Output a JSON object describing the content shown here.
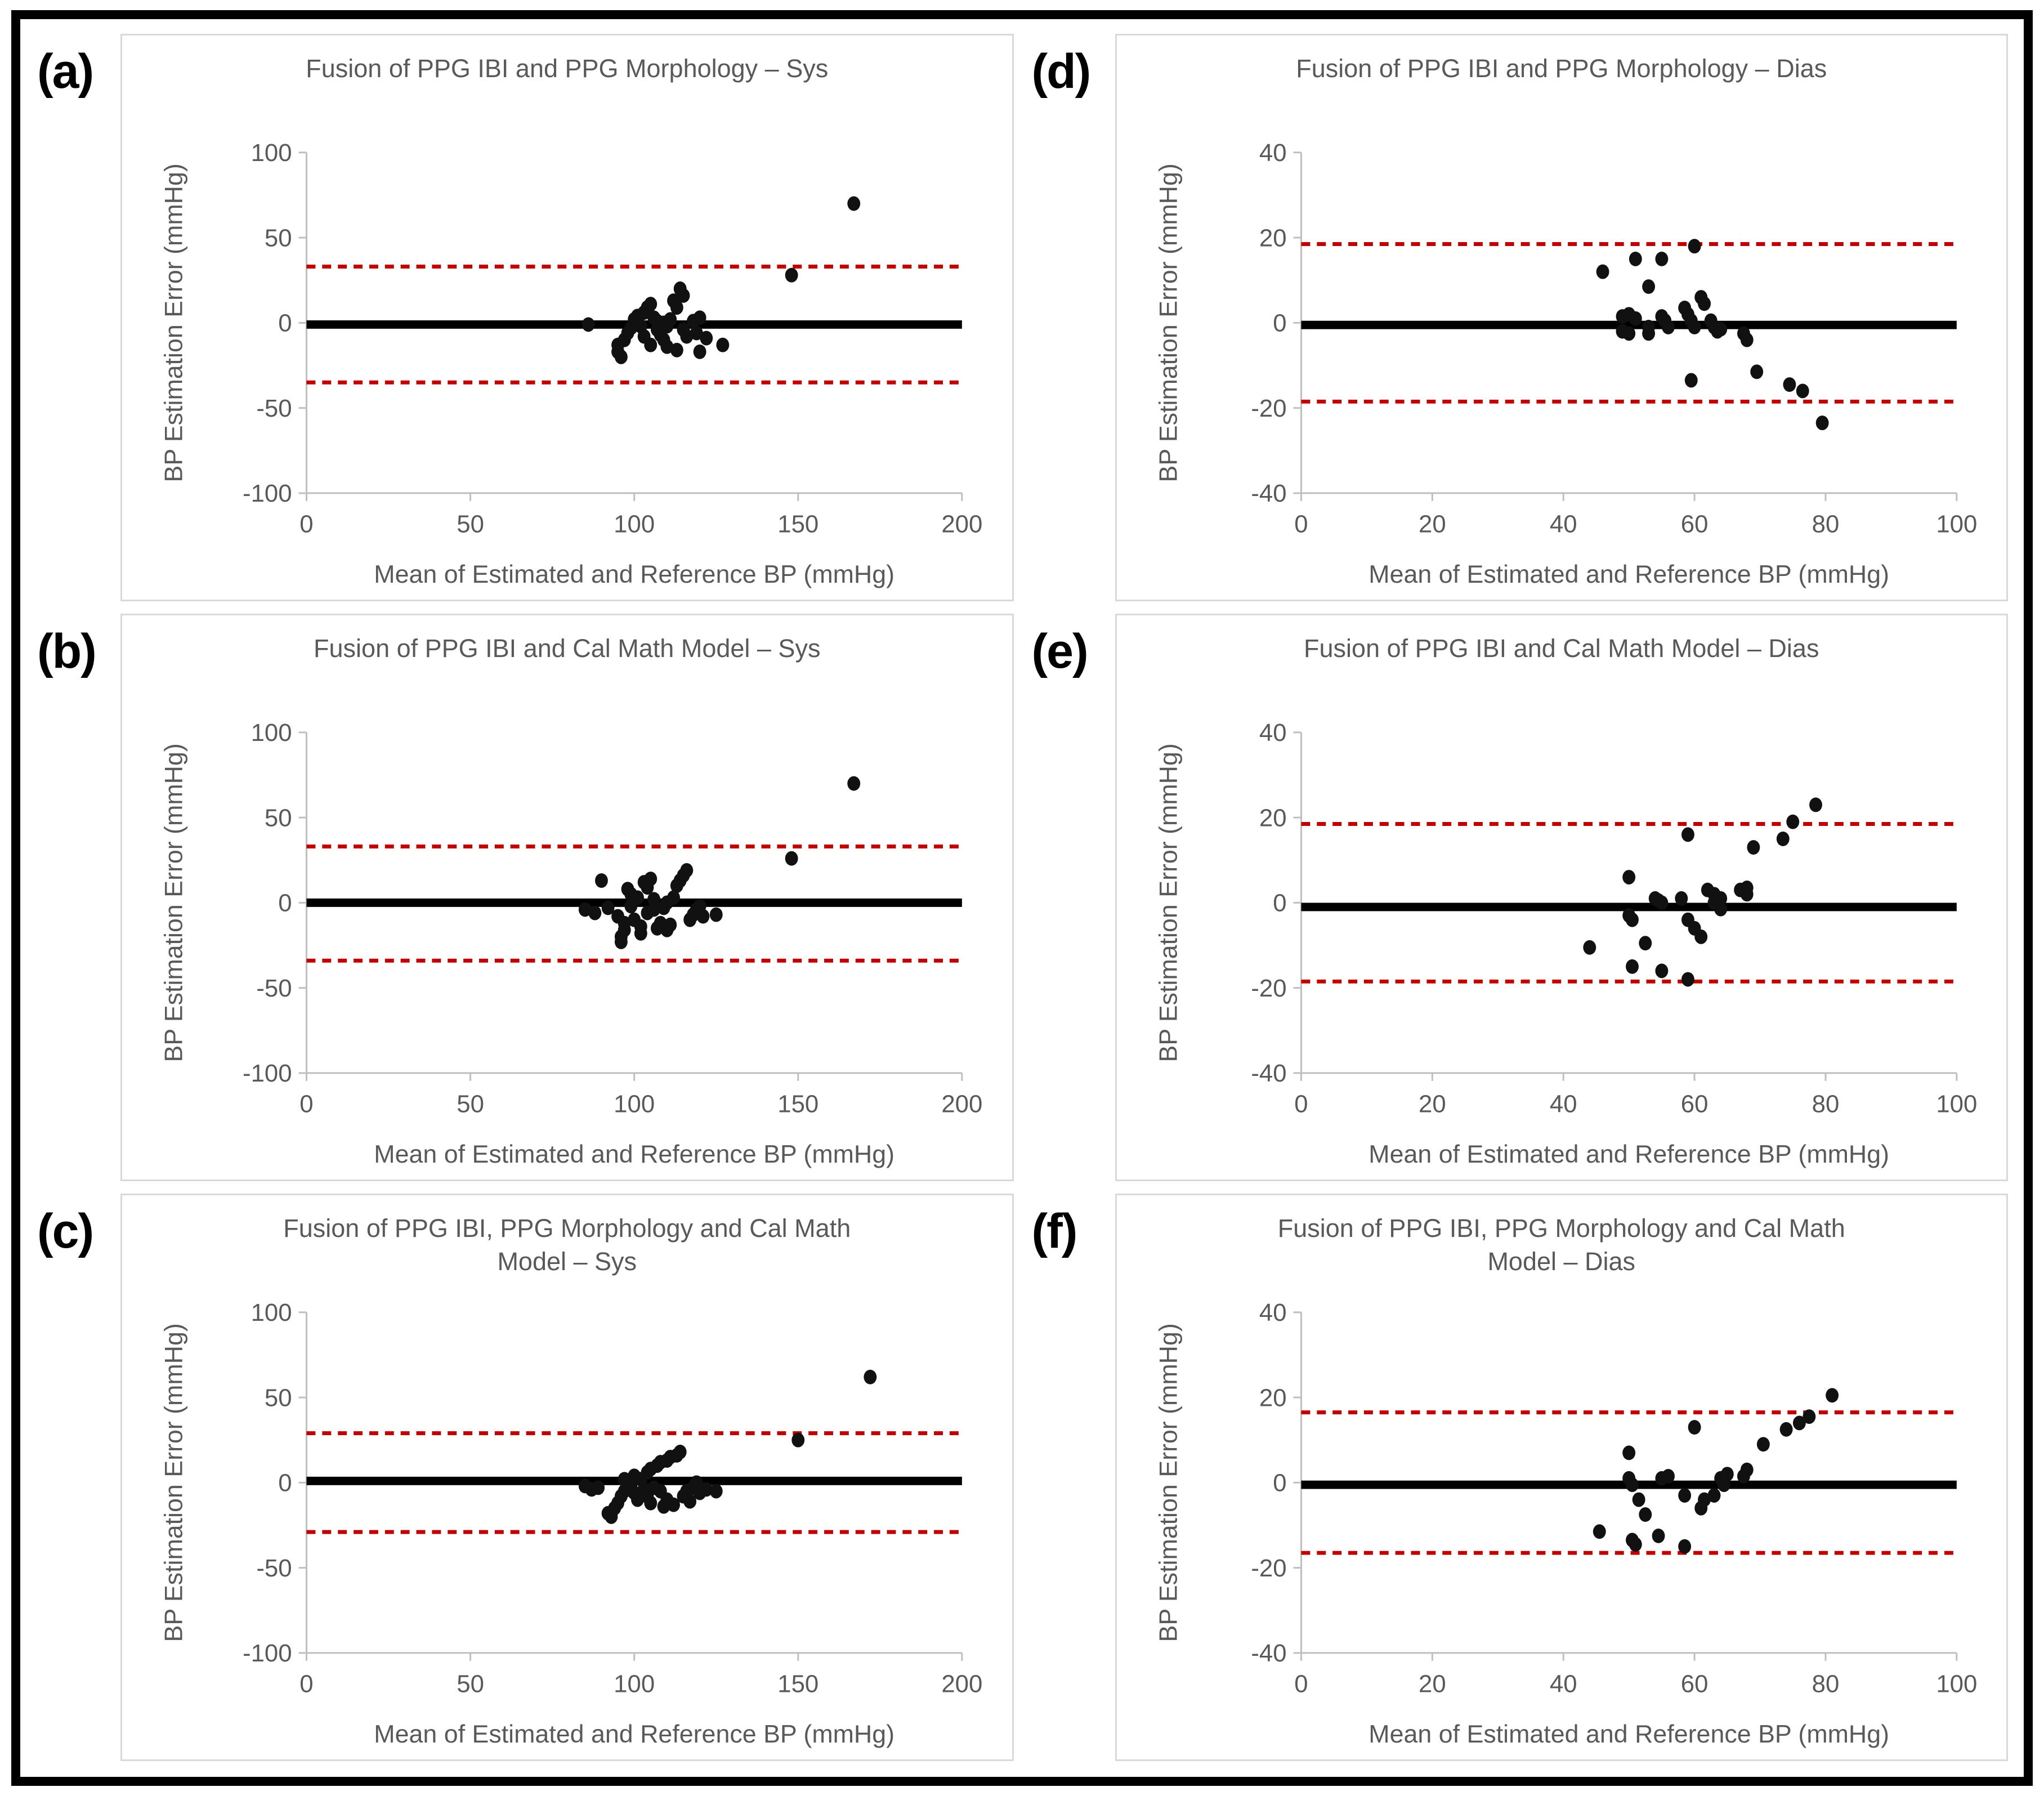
{
  "colors": {
    "point": "#111111",
    "bias_line": "#000000",
    "loa_line": "#c00000",
    "axis_line": "#bfbfbf",
    "tick_text": "#595959",
    "title_text": "#595959",
    "panel_border": "#d9d9d9",
    "outer_frame": "#000000"
  },
  "chart_data": [
    {
      "letter": "(a)",
      "title": "Fusion of PPG IBI and PPG Morphology – Sys",
      "type": "scatter",
      "xlabel": "Mean of Estimated and Reference BP (mmHg)",
      "ylabel": "BP Estimation Error (mmHg)",
      "xlim": [
        0,
        200
      ],
      "xticks": [
        0,
        50,
        100,
        150,
        200
      ],
      "ylim": [
        -100,
        100
      ],
      "yticks": [
        -100,
        -50,
        0,
        50,
        100
      ],
      "bias_line": -1,
      "loa_upper": 33,
      "loa_lower": -35,
      "grid": false,
      "legend": null,
      "points": [
        [
          86,
          -1
        ],
        [
          95,
          -13
        ],
        [
          95,
          -17
        ],
        [
          96,
          -20
        ],
        [
          97,
          -10
        ],
        [
          98,
          -6
        ],
        [
          99,
          -3
        ],
        [
          100,
          -1
        ],
        [
          100,
          2
        ],
        [
          101,
          4
        ],
        [
          102,
          -2
        ],
        [
          103,
          6
        ],
        [
          103,
          -8
        ],
        [
          104,
          9
        ],
        [
          105,
          11
        ],
        [
          105,
          -13
        ],
        [
          106,
          3
        ],
        [
          107,
          1
        ],
        [
          107,
          -4
        ],
        [
          108,
          -7
        ],
        [
          109,
          0
        ],
        [
          109,
          -10
        ],
        [
          110,
          -2
        ],
        [
          110,
          -14
        ],
        [
          111,
          2
        ],
        [
          112,
          13
        ],
        [
          113,
          9
        ],
        [
          113,
          -16
        ],
        [
          114,
          20
        ],
        [
          115,
          16
        ],
        [
          115,
          -4
        ],
        [
          116,
          -8
        ],
        [
          118,
          1
        ],
        [
          119,
          -6
        ],
        [
          120,
          3
        ],
        [
          120,
          -17
        ],
        [
          122,
          -9
        ],
        [
          127,
          -13
        ],
        [
          148,
          28
        ],
        [
          167,
          70
        ]
      ]
    },
    {
      "letter": "(b)",
      "title": "Fusion of PPG IBI and Cal Math Model – Sys",
      "type": "scatter",
      "xlabel": "Mean of Estimated and Reference BP (mmHg)",
      "ylabel": "BP Estimation Error (mmHg)",
      "xlim": [
        0,
        200
      ],
      "xticks": [
        0,
        50,
        100,
        150,
        200
      ],
      "ylim": [
        -100,
        100
      ],
      "yticks": [
        -100,
        -50,
        0,
        50,
        100
      ],
      "bias_line": 0,
      "loa_upper": 33,
      "loa_lower": -34,
      "grid": false,
      "legend": null,
      "points": [
        [
          85,
          -4
        ],
        [
          88,
          -6
        ],
        [
          90,
          13
        ],
        [
          92,
          -3
        ],
        [
          95,
          -8
        ],
        [
          96,
          -20
        ],
        [
          96,
          -23
        ],
        [
          97,
          -16
        ],
        [
          97,
          -12
        ],
        [
          98,
          8
        ],
        [
          99,
          5
        ],
        [
          99,
          -2
        ],
        [
          100,
          -10
        ],
        [
          101,
          3
        ],
        [
          102,
          -18
        ],
        [
          102,
          -14
        ],
        [
          103,
          12
        ],
        [
          104,
          9
        ],
        [
          104,
          -6
        ],
        [
          105,
          14
        ],
        [
          106,
          2
        ],
        [
          106,
          -4
        ],
        [
          107,
          -15
        ],
        [
          108,
          -12
        ],
        [
          109,
          -3
        ],
        [
          110,
          0
        ],
        [
          110,
          -16
        ],
        [
          111,
          -13
        ],
        [
          112,
          3
        ],
        [
          113,
          10
        ],
        [
          114,
          13
        ],
        [
          115,
          16
        ],
        [
          116,
          19
        ],
        [
          117,
          -10
        ],
        [
          118,
          -7
        ],
        [
          119,
          -4
        ],
        [
          120,
          -2
        ],
        [
          121,
          -8
        ],
        [
          125,
          -7
        ],
        [
          148,
          26
        ],
        [
          167,
          70
        ]
      ]
    },
    {
      "letter": "(c)",
      "title": "Fusion of PPG IBI, PPG Morphology and Cal Math Model – Sys",
      "type": "scatter",
      "xlabel": "Mean of Estimated and Reference BP (mmHg)",
      "ylabel": "BP Estimation Error (mmHg)",
      "xlim": [
        0,
        200
      ],
      "xticks": [
        0,
        50,
        100,
        150,
        200
      ],
      "ylim": [
        -100,
        100
      ],
      "yticks": [
        -100,
        -50,
        0,
        50,
        100
      ],
      "bias_line": 1,
      "loa_upper": 29,
      "loa_lower": -29,
      "grid": false,
      "legend": null,
      "points": [
        [
          85,
          -2
        ],
        [
          87,
          -4
        ],
        [
          89,
          -3
        ],
        [
          92,
          -18
        ],
        [
          93,
          -20
        ],
        [
          94,
          -15
        ],
        [
          95,
          -12
        ],
        [
          96,
          -8
        ],
        [
          97,
          -5
        ],
        [
          97,
          2
        ],
        [
          98,
          0
        ],
        [
          99,
          -2
        ],
        [
          100,
          4
        ],
        [
          100,
          -6
        ],
        [
          101,
          -10
        ],
        [
          102,
          2
        ],
        [
          103,
          -4
        ],
        [
          104,
          6
        ],
        [
          104,
          -8
        ],
        [
          105,
          8
        ],
        [
          105,
          -12
        ],
        [
          106,
          -3
        ],
        [
          107,
          10
        ],
        [
          108,
          12
        ],
        [
          108,
          -5
        ],
        [
          109,
          -14
        ],
        [
          110,
          13
        ],
        [
          110,
          -10
        ],
        [
          111,
          15
        ],
        [
          112,
          -13
        ],
        [
          113,
          16
        ],
        [
          114,
          18
        ],
        [
          115,
          -8
        ],
        [
          116,
          -5
        ],
        [
          117,
          -11
        ],
        [
          118,
          -3
        ],
        [
          119,
          0
        ],
        [
          120,
          -6
        ],
        [
          122,
          -4
        ],
        [
          125,
          -5
        ],
        [
          150,
          25
        ],
        [
          172,
          62
        ]
      ]
    },
    {
      "letter": "(d)",
      "title": "Fusion of PPG IBI and PPG Morphology – Dias",
      "type": "scatter",
      "xlabel": "Mean of Estimated and Reference BP (mmHg)",
      "ylabel": "BP Estimation Error (mmHg)",
      "xlim": [
        0,
        100
      ],
      "xticks": [
        0,
        20,
        40,
        60,
        80,
        100
      ],
      "ylim": [
        -40,
        40
      ],
      "yticks": [
        -40,
        -20,
        0,
        20,
        40
      ],
      "bias_line": -0.5,
      "loa_upper": 18.5,
      "loa_lower": -18.5,
      "grid": false,
      "legend": null,
      "points": [
        [
          46,
          12
        ],
        [
          49,
          1.5
        ],
        [
          49,
          -2
        ],
        [
          50,
          2
        ],
        [
          50,
          -2.5
        ],
        [
          51,
          15
        ],
        [
          51,
          1
        ],
        [
          53,
          8.5
        ],
        [
          53,
          -1
        ],
        [
          53,
          -2.5
        ],
        [
          55,
          15
        ],
        [
          55,
          1.5
        ],
        [
          55.5,
          0.5
        ],
        [
          56,
          -1
        ],
        [
          58.5,
          3.5
        ],
        [
          59,
          2
        ],
        [
          59.5,
          0.5
        ],
        [
          59.5,
          -13.5
        ],
        [
          60,
          18
        ],
        [
          60,
          -1
        ],
        [
          61,
          6
        ],
        [
          61.5,
          4.5
        ],
        [
          62.5,
          0.5
        ],
        [
          63,
          -1
        ],
        [
          63.5,
          -2
        ],
        [
          64,
          -1.5
        ],
        [
          67.5,
          -2.5
        ],
        [
          68,
          -4
        ],
        [
          69.5,
          -11.5
        ],
        [
          74.5,
          -14.5
        ],
        [
          76.5,
          -16
        ],
        [
          79.5,
          -23.5
        ]
      ]
    },
    {
      "letter": "(e)",
      "title": "Fusion of PPG IBI and Cal Math Model – Dias",
      "type": "scatter",
      "xlabel": "Mean of Estimated and Reference BP (mmHg)",
      "ylabel": "BP Estimation Error (mmHg)",
      "xlim": [
        0,
        100
      ],
      "xticks": [
        0,
        20,
        40,
        60,
        80,
        100
      ],
      "ylim": [
        -40,
        40
      ],
      "yticks": [
        -40,
        -20,
        0,
        20,
        40
      ],
      "bias_line": -1,
      "loa_upper": 18.5,
      "loa_lower": -18.5,
      "grid": false,
      "legend": null,
      "points": [
        [
          44,
          -10.5
        ],
        [
          50,
          6
        ],
        [
          50,
          -3
        ],
        [
          50.5,
          -4
        ],
        [
          50.5,
          -15
        ],
        [
          52.5,
          -9.5
        ],
        [
          54,
          1
        ],
        [
          54.5,
          0.5
        ],
        [
          55,
          0
        ],
        [
          55,
          -16
        ],
        [
          58,
          1
        ],
        [
          59,
          16
        ],
        [
          59,
          -4
        ],
        [
          59,
          -18
        ],
        [
          60,
          -6
        ],
        [
          61,
          -8
        ],
        [
          62,
          3
        ],
        [
          63,
          2
        ],
        [
          63,
          0
        ],
        [
          64,
          1
        ],
        [
          64,
          -1.5
        ],
        [
          67,
          3
        ],
        [
          68,
          3.5
        ],
        [
          68,
          2
        ],
        [
          69,
          13
        ],
        [
          73.5,
          15
        ],
        [
          75,
          19
        ],
        [
          78.5,
          23
        ]
      ]
    },
    {
      "letter": "(f)",
      "title": "Fusion of PPG IBI, PPG Morphology and Cal Math Model – Dias",
      "type": "scatter",
      "xlabel": "Mean of Estimated and Reference BP (mmHg)",
      "ylabel": "BP Estimation Error (mmHg)",
      "xlim": [
        0,
        100
      ],
      "xticks": [
        0,
        20,
        40,
        60,
        80,
        100
      ],
      "ylim": [
        -40,
        40
      ],
      "yticks": [
        -40,
        -20,
        0,
        20,
        40
      ],
      "bias_line": -0.5,
      "loa_upper": 16.5,
      "loa_lower": -16.5,
      "grid": false,
      "legend": null,
      "points": [
        [
          45.5,
          -11.5
        ],
        [
          50,
          7
        ],
        [
          50,
          1
        ],
        [
          50.5,
          -0.5
        ],
        [
          50.5,
          -13.5
        ],
        [
          51,
          -14.5
        ],
        [
          51.5,
          -4
        ],
        [
          52.5,
          -7.5
        ],
        [
          54.5,
          -12.5
        ],
        [
          55,
          1
        ],
        [
          56,
          1.5
        ],
        [
          58.5,
          -3
        ],
        [
          58.5,
          -15
        ],
        [
          60,
          13
        ],
        [
          61,
          -6
        ],
        [
          61.5,
          -4
        ],
        [
          63,
          -3
        ],
        [
          64,
          1
        ],
        [
          64.5,
          -0.5
        ],
        [
          65,
          2
        ],
        [
          67.5,
          1.5
        ],
        [
          68,
          3
        ],
        [
          70.5,
          9
        ],
        [
          74,
          12.5
        ],
        [
          76,
          14
        ],
        [
          77.5,
          15.5
        ],
        [
          81,
          20.5
        ]
      ]
    }
  ]
}
